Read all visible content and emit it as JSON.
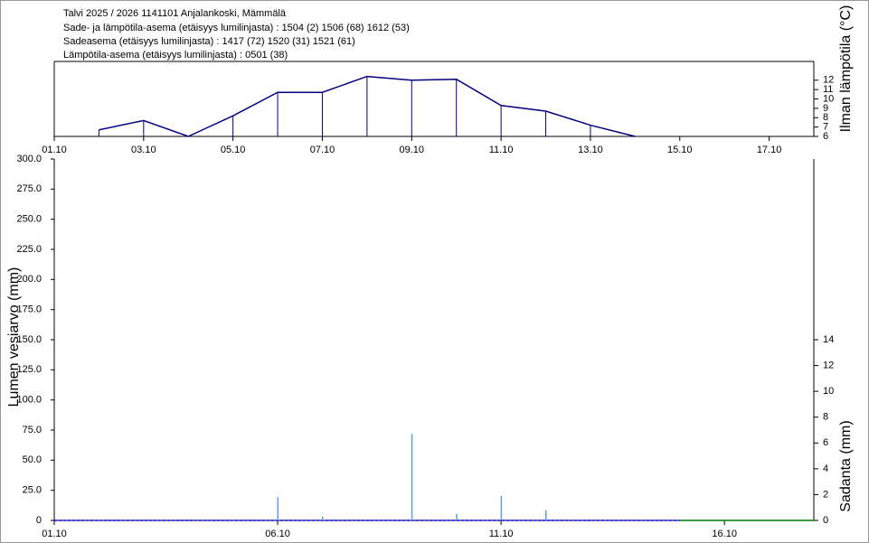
{
  "header": [
    "Talvi 2025 / 2026 1141101 Anjalankoski, Mämmälä",
    "Sade- ja lämpötila-asema (etäisyys lumilinjasta) :  1504 (2) 1506 (68) 1612 (53)",
    "Sadeasema (etäisyys lumilinjasta) :  1417 (72) 1520 (31) 1521 (61)",
    "Lämpötila-asema (etäisyys lumilinjasta) :  0501 (38)"
  ],
  "chart_data": [
    {
      "type": "line",
      "y_label": "Ilman lämpötila (°C)",
      "xlim": [
        "01.10",
        "18.10"
      ],
      "xticks": [
        "01.10",
        "03.10",
        "05.10",
        "07.10",
        "09.10",
        "11.10",
        "13.10",
        "15.10",
        "17.10"
      ],
      "ylim": [
        6,
        14
      ],
      "yticks": [
        6,
        7,
        8,
        9,
        10,
        11,
        12
      ],
      "series": [
        {
          "color": "#000080",
          "stems": true,
          "x": [
            "02.10",
            "03.10",
            "04.10",
            "05.10",
            "06.10",
            "07.10",
            "08.10",
            "09.10",
            "10.10",
            "11.10",
            "12.10",
            "13.10",
            "14.10"
          ],
          "values": [
            6.7,
            7.7,
            6.0,
            8.2,
            10.7,
            10.7,
            12.4,
            12.0,
            12.1,
            9.3,
            8.7,
            7.2,
            6.0
          ]
        }
      ]
    },
    {
      "type": "combo",
      "y_label": "Lumen vesiarvo (mm)",
      "y2_label": "Sadanta (mm)",
      "xlim": [
        "01.10",
        "18.10"
      ],
      "xticks": [
        "01.10",
        "06.10",
        "11.10",
        "16.10"
      ],
      "ylim": [
        0,
        300
      ],
      "yticks": [
        0,
        {
          "value": 25,
          "label": "25.0"
        },
        {
          "value": 50,
          "label": "50.0"
        },
        {
          "value": 75,
          "label": "75.0"
        },
        {
          "value": 100,
          "label": "100.0"
        },
        {
          "value": 125,
          "label": "125.0"
        },
        {
          "value": 150,
          "label": "150.0"
        },
        {
          "value": 175,
          "label": "175.0"
        },
        {
          "value": 200,
          "label": "200.0"
        },
        {
          "value": 225,
          "label": "225.0"
        },
        {
          "value": 250,
          "label": "250.0"
        },
        {
          "value": 275,
          "label": "275.0"
        },
        {
          "value": 300,
          "label": "300.0"
        }
      ],
      "y2lim": [
        0,
        28
      ],
      "y2ticks": [
        0,
        2,
        4,
        6,
        8,
        10,
        12,
        14
      ],
      "series": [
        {
          "type": "line",
          "color": "#0000ff",
          "dashed": true,
          "x": [
            "01.10",
            "15.10"
          ],
          "values": [
            0,
            0
          ]
        },
        {
          "type": "line",
          "color": "#008000",
          "x": [
            "15.10",
            "18.10"
          ],
          "values": [
            0,
            0
          ]
        },
        {
          "type": "bar",
          "axis": "y2",
          "color": "#5aa0e0",
          "x": [
            "06.10",
            "07.10",
            "09.10",
            "10.10",
            "11.10",
            "12.10"
          ],
          "values": [
            1.8,
            0.3,
            6.7,
            0.5,
            1.9,
            0.8
          ]
        }
      ]
    }
  ]
}
